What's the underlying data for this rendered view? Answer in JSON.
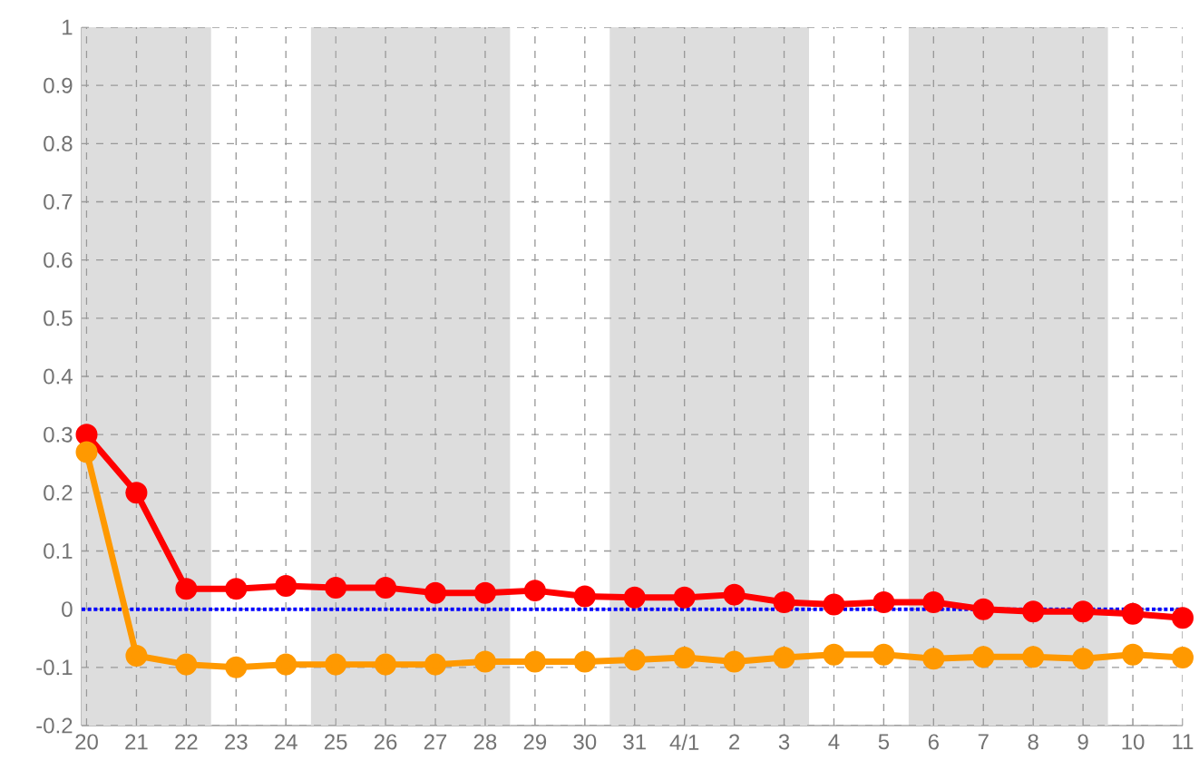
{
  "chart_data": {
    "type": "line",
    "categories": [
      "20",
      "21",
      "22",
      "23",
      "24",
      "25",
      "26",
      "27",
      "28",
      "29",
      "30",
      "31",
      "4/1",
      "2",
      "3",
      "4",
      "5",
      "6",
      "7",
      "8",
      "9",
      "10",
      "11"
    ],
    "series": [
      {
        "color": "#ff0000",
        "values": [
          0.3,
          0.2,
          0.035,
          0.035,
          0.04,
          0.037,
          0.037,
          0.028,
          0.028,
          0.032,
          0.022,
          0.02,
          0.02,
          0.025,
          0.012,
          0.008,
          0.012,
          0.012,
          0.0,
          -0.004,
          -0.004,
          -0.008,
          -0.015
        ]
      },
      {
        "color": "#ff9900",
        "values": [
          0.27,
          -0.08,
          -0.095,
          -0.1,
          -0.095,
          -0.095,
          -0.095,
          -0.095,
          -0.09,
          -0.09,
          -0.09,
          -0.087,
          -0.083,
          -0.09,
          -0.083,
          -0.078,
          -0.078,
          -0.085,
          -0.082,
          -0.082,
          -0.085,
          -0.078,
          -0.083
        ]
      }
    ],
    "ylim": [
      -0.2,
      1
    ],
    "yticks": [
      -0.2,
      -0.1,
      0,
      0.1,
      0.2,
      0.3,
      0.4,
      0.5,
      0.6,
      0.7,
      0.8,
      0.9,
      1
    ],
    "grid": true,
    "marker": "circle",
    "line_style": "solid",
    "ref_lines": [
      {
        "axis": "y",
        "value": 0,
        "color": "#0000ff",
        "line_style": "dotted"
      }
    ],
    "bands": [
      {
        "axis": "x",
        "from": "20",
        "to": "22",
        "color": "#dddddd"
      },
      {
        "axis": "x",
        "from": "25",
        "to": "28",
        "color": "#dddddd"
      },
      {
        "axis": "x",
        "from": "31",
        "to": "3",
        "color": "#dddddd"
      },
      {
        "axis": "x",
        "from": "6",
        "to": "9",
        "color": "#dddddd"
      }
    ]
  }
}
